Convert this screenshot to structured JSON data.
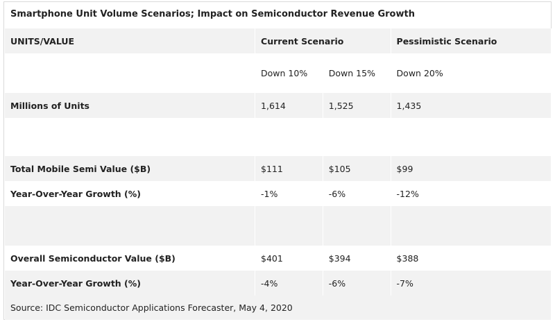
{
  "title": "Smartphone Unit Volume Scenarios; Impact on Semiconductor Revenue Growth",
  "header": {
    "col0": "UNITS/VALUE",
    "current": "Current Scenario",
    "pessimistic": "Pessimistic Scenario"
  },
  "subheader": [
    "Down 10%",
    "Down 15%",
    "Down 20%"
  ],
  "rows": [
    {
      "label": "Millions of Units",
      "values": [
        "1,614",
        "1,525",
        "1,435"
      ]
    },
    {
      "label": "Total Mobile Semi Value ($B)",
      "values": [
        "$111",
        "$105",
        "$99"
      ]
    },
    {
      "label": "Year-Over-Year Growth (%)",
      "values": [
        "-1%",
        "-6%",
        "-12%"
      ]
    },
    {
      "label": "Overall Semiconductor Value ($B)",
      "values": [
        "$401",
        "$394",
        "$388"
      ]
    },
    {
      "label": "Year-Over-Year Growth (%)",
      "values": [
        "-4%",
        "-6%",
        "-7%"
      ]
    }
  ],
  "source": "Source: IDC Semiconductor Applications Forecaster, May 4, 2020"
}
